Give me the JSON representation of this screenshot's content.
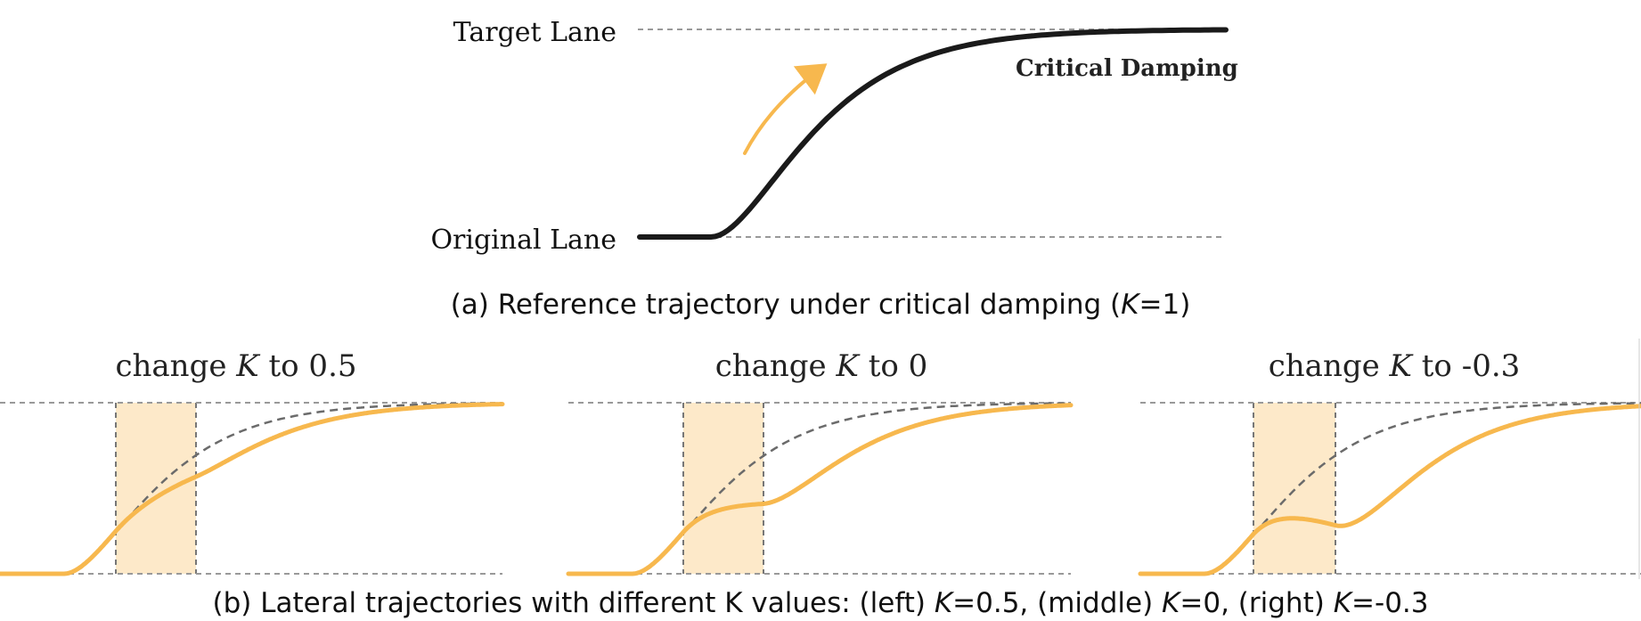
{
  "top": {
    "target_lane_label": "Target Lane",
    "original_lane_label": "Original Lane",
    "curve_label": "Critical Damping",
    "caption_prefix": "(a) Reference trajectory under critical damping (",
    "caption_k": "K",
    "caption_suffix": "=1)",
    "k_value": 1
  },
  "panels": [
    {
      "title_prefix": "change ",
      "title_k": "K",
      "title_suffix": " to 0.5",
      "k": 0.5
    },
    {
      "title_prefix": "change ",
      "title_k": "K",
      "title_suffix": " to 0",
      "k": 0
    },
    {
      "title_prefix": "change ",
      "title_k": "K",
      "title_suffix": " to -0.3",
      "k": -0.3
    }
  ],
  "bottom_caption": {
    "part1": "(b) Lateral trajectories with different K values: (left) ",
    "k1": "K",
    "part2": "=0.5, (middle) ",
    "k2": "K",
    "part3": "=0, (right) ",
    "k3": "K",
    "part4": "=-0.3"
  },
  "colors": {
    "reference": "#1a1a1a",
    "modified": "#f7b84e",
    "window_fill": "#fde9c9",
    "dashed_reference": "#6b6b6b",
    "arrow": "#f7b84e"
  }
}
